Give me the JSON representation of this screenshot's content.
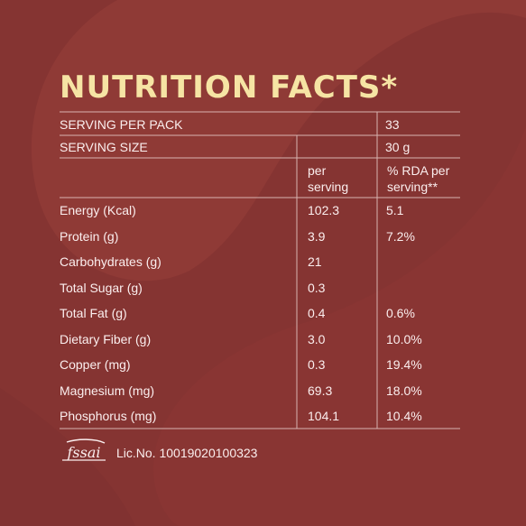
{
  "title": "NUTRITION FACTS*",
  "serving_per_pack": {
    "label": "SERVING PER PACK",
    "value": "33"
  },
  "serving_size": {
    "label": "SERVING SIZE",
    "value": "30 g"
  },
  "columns": {
    "per_serving": [
      "per",
      "serving"
    ],
    "rda": [
      "% RDA per",
      "serving**"
    ]
  },
  "rows": [
    {
      "nutrient": "Energy (Kcal)",
      "per_serving": "102.3",
      "rda": "5.1"
    },
    {
      "nutrient": "Protein (g)",
      "per_serving": "3.9",
      "rda": "7.2%"
    },
    {
      "nutrient": "Carbohydrates (g)",
      "per_serving": "21",
      "rda": ""
    },
    {
      "nutrient": "Total Sugar (g)",
      "per_serving": "0.3",
      "rda": ""
    },
    {
      "nutrient": "Total Fat (g)",
      "per_serving": "0.4",
      "rda": "0.6%"
    },
    {
      "nutrient": "Dietary Fiber (g)",
      "per_serving": "3.0",
      "rda": "10.0%"
    },
    {
      "nutrient": "Copper (mg)",
      "per_serving": "0.3",
      "rda": "19.4%"
    },
    {
      "nutrient": "Magnesium (mg)",
      "per_serving": "69.3",
      "rda": "18.0%"
    },
    {
      "nutrient": "Phosphorus (mg)",
      "per_serving": "104.1",
      "rda": "10.4%"
    }
  ],
  "footer": {
    "logo": "fssai",
    "license": "Lic.No. 10019020100323"
  },
  "colors": {
    "background": "#8f3a36",
    "background_shape": "#7d2f30",
    "title": "#f6e4a4",
    "text": "#fbeeee",
    "lines": "#d8b3b0"
  }
}
